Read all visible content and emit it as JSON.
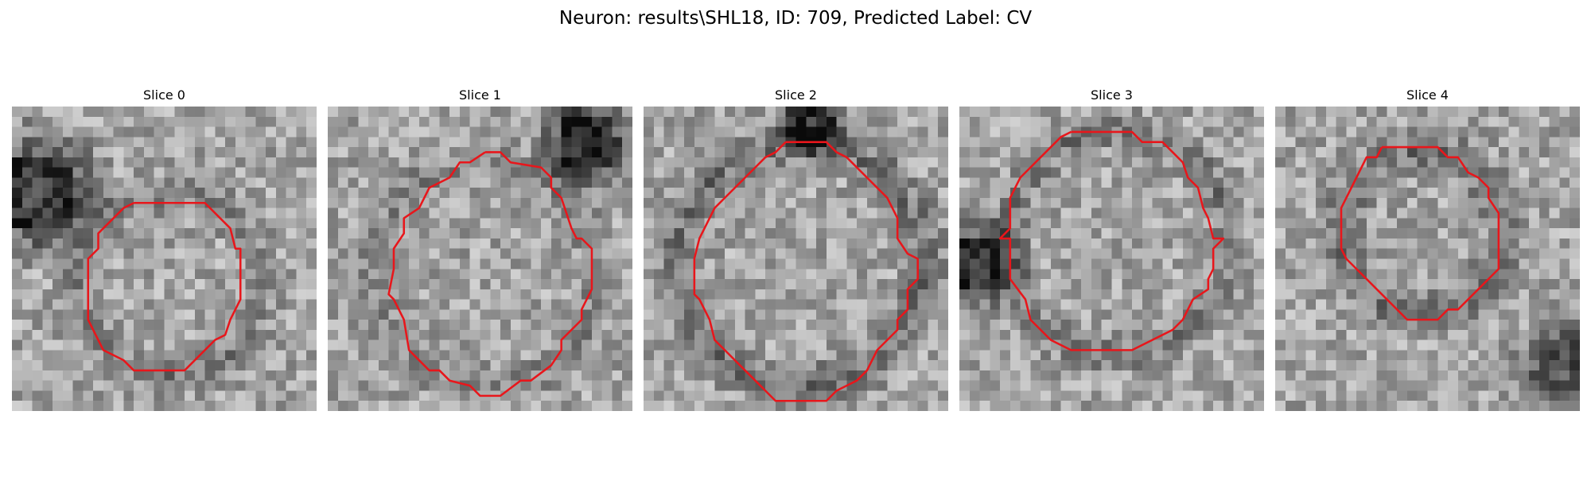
{
  "figure": {
    "title": "Neuron: results\\SHL18, ID: 709, Predicted Label: CV"
  },
  "style": {
    "contour_color": "#e8161b",
    "colormap": "gray"
  },
  "panels": [
    {
      "title": "Slice 0"
    },
    {
      "title": "Slice 1"
    },
    {
      "title": "Slice 2"
    },
    {
      "title": "Slice 3"
    },
    {
      "title": "Slice 4"
    }
  ]
}
